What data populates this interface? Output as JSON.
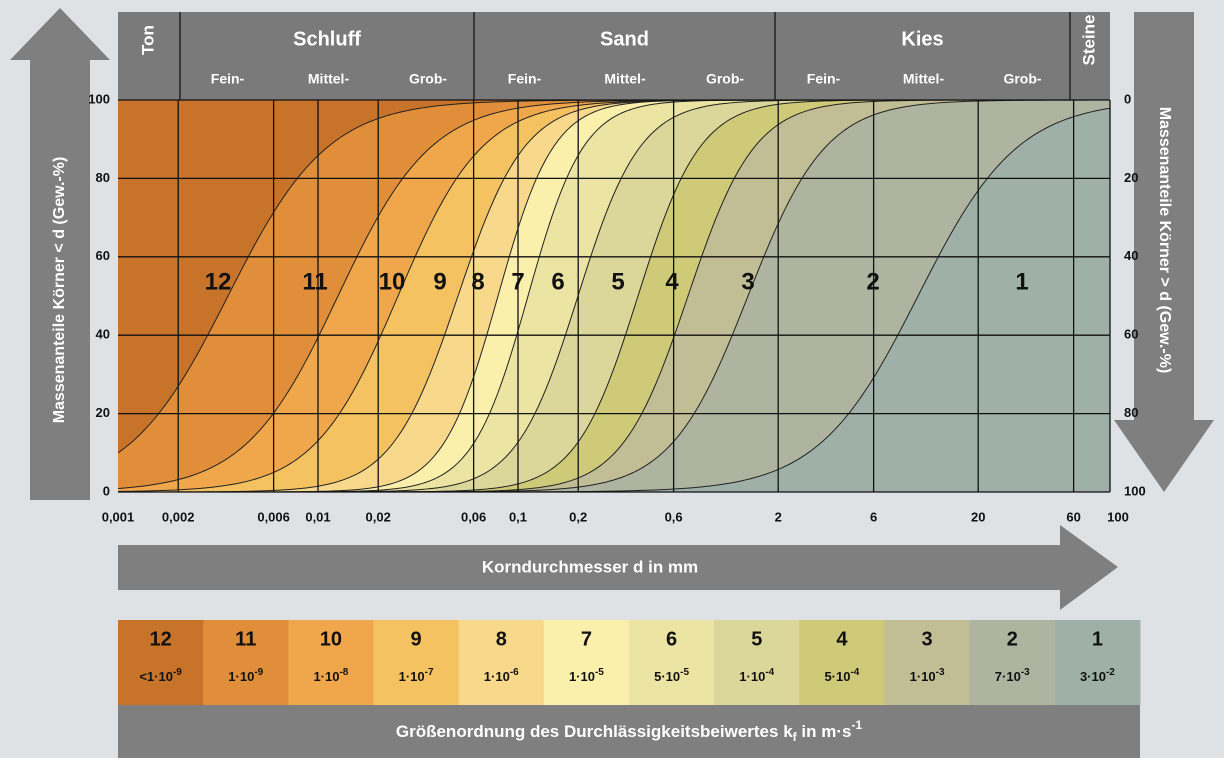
{
  "header": {
    "groups": [
      "Ton",
      "Schluff",
      "Sand",
      "Kies",
      "Steine"
    ],
    "subgroups": [
      [
        "Fein-",
        "Mittel-",
        "Grob-"
      ],
      [
        "Fein-",
        "Mittel-",
        "Grob-"
      ],
      [
        "Fein-",
        "Mittel-",
        "Grob-"
      ]
    ]
  },
  "left_axis": {
    "label": "Massenanteile Körner < d (Gew.-%)",
    "ticks": [
      "100",
      "80",
      "60",
      "40",
      "20",
      "0"
    ]
  },
  "right_axis": {
    "label": "Massenanteile Körner > d (Gew.-%)",
    "ticks": [
      "0",
      "20",
      "40",
      "60",
      "80",
      "100"
    ]
  },
  "x_axis": {
    "label": "Korndurchmesser d in mm",
    "ticks": [
      "0,001",
      "0,002",
      "0,006",
      "0,01",
      "0,02",
      "0,06",
      "0,1",
      "0,2",
      "0,6",
      "2",
      "6",
      "20",
      "60",
      "100"
    ]
  },
  "zones": [
    "12",
    "11",
    "10",
    "9",
    "8",
    "7",
    "6",
    "5",
    "4",
    "3",
    "2",
    "1"
  ],
  "legend": [
    {
      "zone": "12",
      "base": "<1·10",
      "exp": "-9"
    },
    {
      "zone": "11",
      "base": "1·10",
      "exp": "-9"
    },
    {
      "zone": "10",
      "base": "1·10",
      "exp": "-8"
    },
    {
      "zone": "9",
      "base": "1·10",
      "exp": "-7"
    },
    {
      "zone": "8",
      "base": "1·10",
      "exp": "-6"
    },
    {
      "zone": "7",
      "base": "1·10",
      "exp": "-5"
    },
    {
      "zone": "6",
      "base": "5·10",
      "exp": "-5"
    },
    {
      "zone": "5",
      "base": "1·10",
      "exp": "-4"
    },
    {
      "zone": "4",
      "base": "5·10",
      "exp": "-4"
    },
    {
      "zone": "3",
      "base": "1·10",
      "exp": "-3"
    },
    {
      "zone": "2",
      "base": "7·10",
      "exp": "-3"
    },
    {
      "zone": "1",
      "base": "3·10",
      "exp": "-2"
    }
  ],
  "footer": {
    "text": "Größenordnung des Durchlässigkeitsbeiwertes k",
    "sub": "f",
    "text2": " in m·s",
    "sup": "-1"
  }
}
